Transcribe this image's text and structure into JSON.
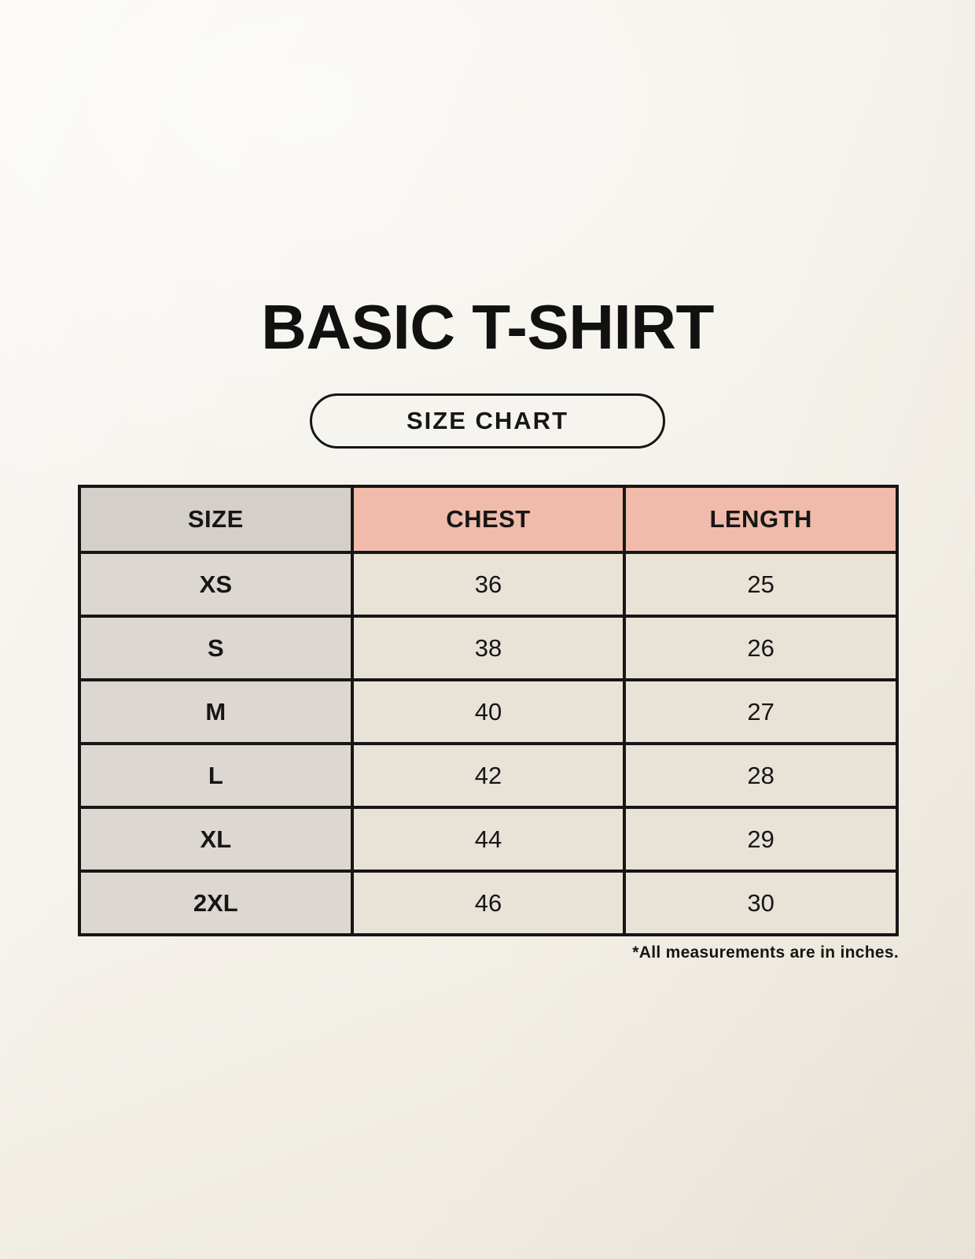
{
  "header": {
    "title": "BASIC T-SHIRT",
    "badge_label": "SIZE CHART"
  },
  "chart_data": {
    "type": "table",
    "title": "BASIC T-SHIRT",
    "columns": [
      "SIZE",
      "CHEST",
      "LENGTH"
    ],
    "rows": [
      {
        "size": "XS",
        "chest": "36",
        "length": "25"
      },
      {
        "size": "S",
        "chest": "38",
        "length": "26"
      },
      {
        "size": "M",
        "chest": "40",
        "length": "27"
      },
      {
        "size": "L",
        "chest": "42",
        "length": "28"
      },
      {
        "size": "XL",
        "chest": "44",
        "length": "29"
      },
      {
        "size": "2XL",
        "chest": "46",
        "length": "30"
      }
    ],
    "units": "inches"
  },
  "footnote": "*All measurements are in inches.",
  "colors": {
    "background": "#f2eee5",
    "border": "#161616",
    "header_size_bg": "#d5cfc9",
    "header_accent_bg": "#f0bbab",
    "size_column_bg": "#ddd7d1",
    "value_cell_bg": "#e9e2d7",
    "text": "#161616"
  }
}
